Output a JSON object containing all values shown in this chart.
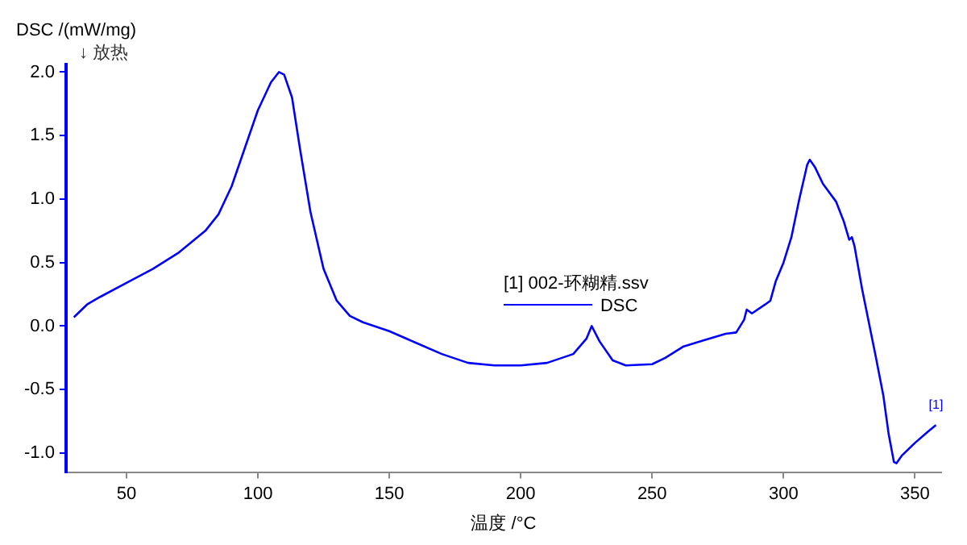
{
  "chart_data": {
    "type": "line",
    "xlabel": "温度 /°C",
    "ylabel": "DSC /(mW/mg)",
    "legend_title": "[1] 002-环糊精.ssv",
    "legend": "center",
    "grid": false,
    "marker": "none",
    "line_style": "solid",
    "annotations": [
      "↓ 放热",
      {
        "text": "[1]",
        "x": 358,
        "y": -0.78
      }
    ],
    "xlim": [
      27,
      360
    ],
    "xticks": [
      50,
      100,
      150,
      200,
      250,
      300,
      350
    ],
    "ylim": [
      -1.15,
      2.06
    ],
    "yticks": [
      {
        "value": -1,
        "label": "-1.0"
      },
      -0.5,
      {
        "value": 0,
        "label": "0.0"
      },
      0.5,
      {
        "value": 1,
        "label": "1.0"
      },
      1.5,
      {
        "value": 2,
        "label": "2.0"
      }
    ],
    "series": [
      {
        "name": "DSC",
        "color": "#0000ff",
        "x": [
          30,
          35,
          40,
          50,
          60,
          70,
          80,
          85,
          90,
          95,
          100,
          105,
          108,
          110,
          113,
          116,
          120,
          125,
          130,
          135,
          140,
          150,
          160,
          170,
          180,
          190,
          200,
          210,
          220,
          225,
          227,
          230,
          235,
          240,
          250,
          255,
          262,
          270,
          278,
          282,
          285,
          286,
          288,
          293,
          295,
          297,
          300,
          303,
          306,
          309,
          310,
          312,
          315,
          320,
          323,
          325,
          326,
          327,
          330,
          335,
          338,
          340,
          342,
          343,
          345,
          350,
          355,
          358
        ],
        "values": [
          0.07,
          0.17,
          0.23,
          0.34,
          0.45,
          0.58,
          0.75,
          0.88,
          1.1,
          1.4,
          1.7,
          1.92,
          2.0,
          1.98,
          1.8,
          1.4,
          0.9,
          0.45,
          0.2,
          0.08,
          0.03,
          -0.04,
          -0.13,
          -0.22,
          -0.29,
          -0.31,
          -0.31,
          -0.29,
          -0.22,
          -0.1,
          0.0,
          -0.12,
          -0.27,
          -0.31,
          -0.3,
          -0.25,
          -0.16,
          -0.11,
          -0.06,
          -0.05,
          0.05,
          0.13,
          0.1,
          0.17,
          0.2,
          0.35,
          0.5,
          0.7,
          1.0,
          1.27,
          1.31,
          1.25,
          1.12,
          0.98,
          0.82,
          0.68,
          0.7,
          0.63,
          0.28,
          -0.23,
          -0.55,
          -0.85,
          -1.07,
          -1.08,
          -1.02,
          -0.92,
          -0.83,
          -0.78
        ]
      }
    ]
  }
}
